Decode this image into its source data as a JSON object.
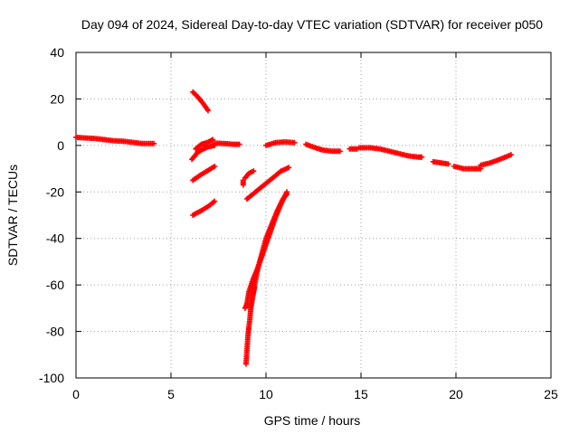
{
  "chart_data": {
    "type": "scatter",
    "title": "Day 094 of 2024, Sidereal Day-to-day VTEC variation (SDTVAR) for receiver p050",
    "xlabel": "GPS time / hours",
    "ylabel": "SDTVAR / TECUs",
    "xlim": [
      0,
      25
    ],
    "ylim": [
      -100,
      40
    ],
    "xticks": [
      0,
      5,
      10,
      15,
      20,
      25
    ],
    "yticks": [
      -100,
      -80,
      -60,
      -40,
      -20,
      0,
      20,
      40
    ],
    "xtick_labels": [
      "0",
      "5",
      "10",
      "15",
      "20",
      "25"
    ],
    "ytick_labels": [
      "-100",
      "-80",
      "-60",
      "-40",
      "-20",
      "0",
      "20",
      "40"
    ],
    "grid": true,
    "marker": "+",
    "series": [
      {
        "name": "SDTVAR",
        "color": "#ff0000",
        "tracks": [
          {
            "x": [
              0,
              0.5,
              1,
              1.5,
              2,
              2.5,
              3,
              3.5,
              4.1
            ],
            "y": [
              3.5,
              3.2,
              3.0,
              2.5,
              2.0,
              1.8,
              1.3,
              0.8,
              0.8
            ]
          },
          {
            "x": [
              6.15,
              6.4,
              6.7,
              6.95
            ],
            "y": [
              23,
              21,
              18,
              15
            ]
          },
          {
            "x": [
              6.3,
              6.6,
              6.9,
              7.2
            ],
            "y": [
              -1.5,
              0.5,
              1.2,
              2.5
            ]
          },
          {
            "x": [
              6.1,
              6.4,
              6.7,
              7.0,
              7.3
            ],
            "y": [
              -6,
              -3,
              -1.5,
              -0.5,
              0
            ]
          },
          {
            "x": [
              7.3,
              7.8,
              8.3,
              8.6
            ],
            "y": [
              1,
              0.8,
              0.5,
              0.5
            ]
          },
          {
            "x": [
              6.15,
              6.5,
              6.9,
              7.3
            ],
            "y": [
              -15,
              -13,
              -11,
              -9
            ]
          },
          {
            "x": [
              6.15,
              6.6,
              7.0,
              7.3
            ],
            "y": [
              -30,
              -28,
              -26,
              -24
            ]
          },
          {
            "x": [
              8.8,
              8.8
            ],
            "y": [
              -15,
              -17
            ]
          },
          {
            "x": [
              8.9,
              9.1,
              9.35
            ],
            "y": [
              -14,
              -12,
              -11
            ]
          },
          {
            "x": [
              9.0,
              9.3,
              9.6,
              9.9,
              10.2,
              10.5,
              10.8,
              11.2
            ],
            "y": [
              -23,
              -21,
              -19,
              -17,
              -15,
              -13,
              -11,
              -9.5
            ]
          },
          {
            "x": [
              10.0,
              10.5,
              11.0,
              11.5
            ],
            "y": [
              0,
              1.2,
              1.5,
              1.2
            ]
          },
          {
            "x": [
              8.95,
              9.0,
              9.05,
              9.1,
              9.15,
              9.2,
              9.3,
              9.4
            ],
            "y": [
              -94,
              -88,
              -82,
              -78,
              -75,
              -70,
              -65,
              -61
            ]
          },
          {
            "x": [
              8.9,
              9.0,
              9.1,
              9.3,
              9.6,
              9.9,
              10.2,
              10.5,
              10.8,
              11.1
            ],
            "y": [
              -70,
              -68,
              -63,
              -58,
              -52,
              -45,
              -38,
              -31,
              -25,
              -20
            ]
          },
          {
            "x": [
              9.2,
              9.4,
              9.6,
              9.8,
              10.0,
              10.3,
              10.6,
              10.9,
              11.1
            ],
            "y": [
              -70,
              -60,
              -52,
              -46,
              -40,
              -34,
              -28,
              -23,
              -21
            ]
          },
          {
            "x": [
              12.1,
              12.6,
              13.0,
              13.5,
              13.9
            ],
            "y": [
              0.5,
              -1,
              -2,
              -2.5,
              -2.5
            ]
          },
          {
            "x": [
              14.4,
              14.8
            ],
            "y": [
              -1.5,
              -1.5
            ]
          },
          {
            "x": [
              14.9,
              15.5,
              16.0,
              16.5,
              17.0,
              17.5,
              18.0,
              18.2
            ],
            "y": [
              -1,
              -1,
              -1.5,
              -2.5,
              -3.5,
              -4.5,
              -5,
              -5
            ]
          },
          {
            "x": [
              18.8,
              19.2,
              19.6
            ],
            "y": [
              -7,
              -7.5,
              -8
            ]
          },
          {
            "x": [
              19.9,
              20.4,
              20.9,
              21.3
            ],
            "y": [
              -9,
              -10,
              -10,
              -10
            ]
          },
          {
            "x": [
              21.3,
              21.8,
              22.3,
              22.9
            ],
            "y": [
              -8.5,
              -7.5,
              -6,
              -4
            ]
          }
        ]
      }
    ]
  }
}
